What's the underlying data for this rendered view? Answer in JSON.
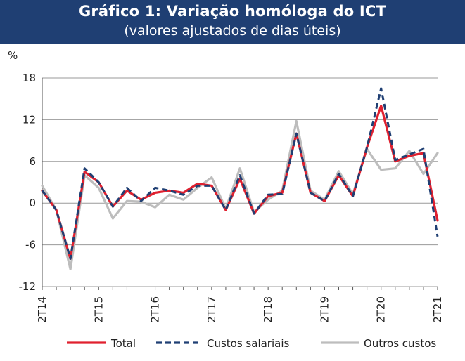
{
  "header": {
    "title": "Gráfico 1: Variação homóloga do ICT",
    "subtitle": "(valores ajustados de dias úteis)"
  },
  "chart_data": {
    "type": "line",
    "title": "Gráfico 1: Variação homóloga do ICT",
    "subtitle": "(valores ajustados de dias úteis)",
    "ylabel": "%",
    "xlabel": "",
    "ylim": [
      -12,
      18
    ],
    "yticks": [
      18,
      12,
      6,
      0,
      -6,
      -12
    ],
    "xtick_labels": [
      "2T14",
      "2T15",
      "2T16",
      "2T17",
      "2T18",
      "2T19",
      "2T20",
      "2T21"
    ],
    "x": [
      "2T14",
      "3T14",
      "4T14",
      "1T15",
      "2T15",
      "3T15",
      "4T15",
      "1T16",
      "2T16",
      "3T16",
      "4T16",
      "1T17",
      "2T17",
      "3T17",
      "4T17",
      "1T18",
      "2T18",
      "3T18",
      "4T18",
      "1T19",
      "2T19",
      "3T19",
      "4T19",
      "1T20",
      "2T20",
      "3T20",
      "4T20",
      "1T21",
      "2T21"
    ],
    "grid": "horizontal",
    "legend_position": "bottom",
    "series": [
      {
        "name": "Total",
        "color": "#e0202f",
        "style": "solid",
        "values": [
          1.8,
          -1.0,
          -8.0,
          4.5,
          3.0,
          -0.5,
          1.8,
          0.5,
          1.5,
          1.8,
          1.5,
          2.8,
          2.5,
          -1.0,
          3.5,
          -1.5,
          1.0,
          1.5,
          10.0,
          1.5,
          0.3,
          4.0,
          1.0,
          8.0,
          14.0,
          6.0,
          6.8,
          7.2,
          -2.5
        ]
      },
      {
        "name": "Custos salariais",
        "color": "#1f3f73",
        "style": "dashed",
        "values": [
          1.8,
          -1.0,
          -8.0,
          5.0,
          3.0,
          -0.5,
          2.2,
          0.3,
          2.2,
          1.8,
          1.2,
          2.5,
          2.5,
          -1.0,
          4.0,
          -1.5,
          1.2,
          1.3,
          10.0,
          1.5,
          0.3,
          4.2,
          1.0,
          8.0,
          16.5,
          6.2,
          7.0,
          7.8,
          -4.8
        ]
      },
      {
        "name": "Outros custos",
        "color": "#bdbdbd",
        "style": "solid",
        "values": [
          2.5,
          -1.0,
          -9.5,
          4.0,
          2.2,
          -2.2,
          0.3,
          0.2,
          -0.6,
          1.2,
          0.5,
          2.2,
          3.7,
          -0.8,
          5.0,
          -1.3,
          0.5,
          1.8,
          11.8,
          1.8,
          0.5,
          4.6,
          1.3,
          7.8,
          4.8,
          5.0,
          7.5,
          4.2,
          7.2
        ]
      }
    ]
  }
}
